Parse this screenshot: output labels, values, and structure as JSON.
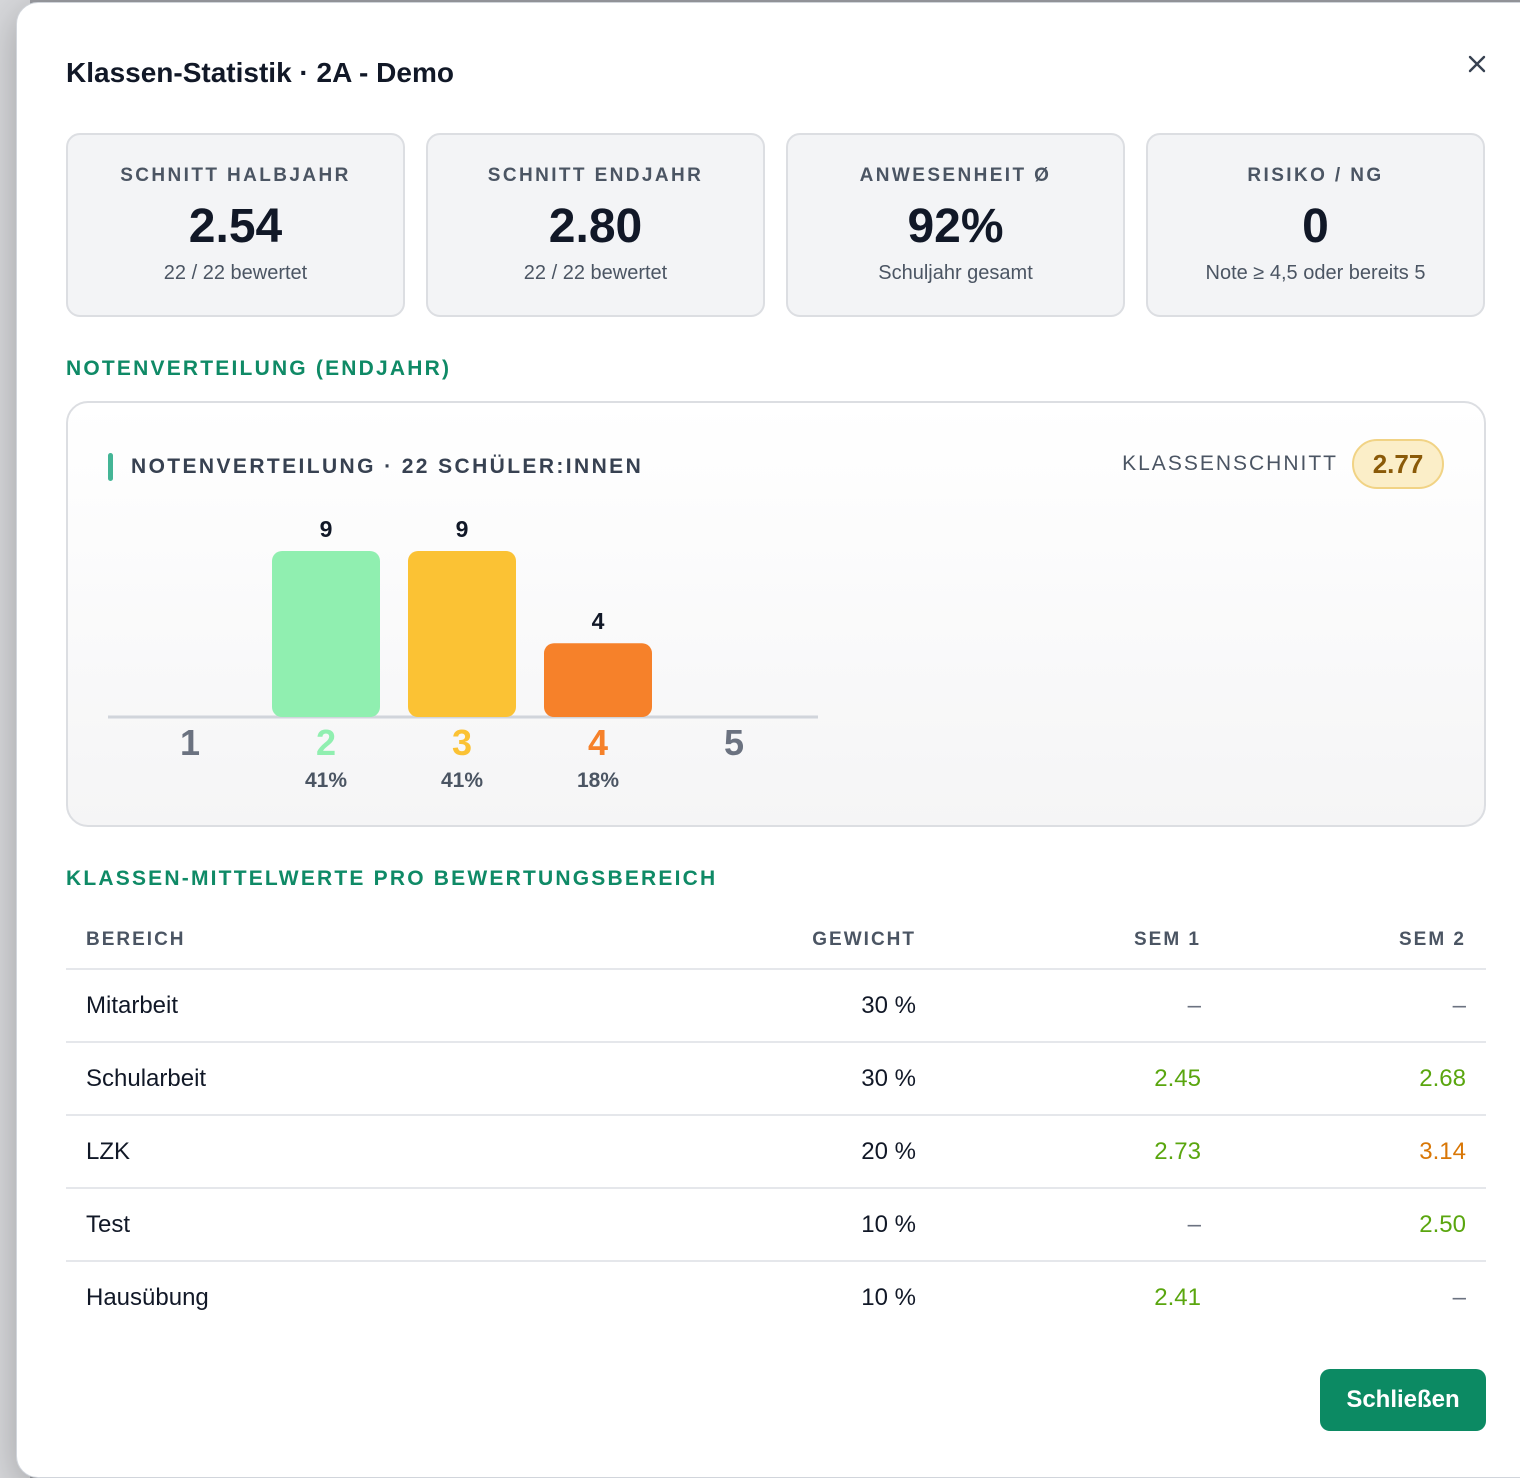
{
  "modal": {
    "title": "Klassen-Statistik · 2A - Demo",
    "close_icon": "close-icon"
  },
  "stats": [
    {
      "label": "SCHNITT HALBJAHR",
      "value": "2.54",
      "sub": "22 / 22 bewertet"
    },
    {
      "label": "SCHNITT ENDJAHR",
      "value": "2.80",
      "sub": "22 / 22 bewertet"
    },
    {
      "label": "ANWESENHEIT Ø",
      "value": "92%",
      "sub": "Schuljahr gesamt"
    },
    {
      "label": "RISIKO / NG",
      "value": "0",
      "sub": "Note ≥ 4,5 oder bereits 5"
    }
  ],
  "distribution_section": {
    "title": "NOTENVERTEILUNG (ENDJAHR)"
  },
  "chart_data": {
    "type": "bar",
    "title": "NOTENVERTEILUNG · 22 SCHÜLER:INNEN",
    "average_label": "KLASSENSCHNITT",
    "average_value": "2.77",
    "categories": [
      "1",
      "2",
      "3",
      "4",
      "5"
    ],
    "values": [
      0,
      9,
      9,
      4,
      0
    ],
    "value_labels": [
      "",
      "9",
      "9",
      "4",
      ""
    ],
    "percent_labels": [
      "",
      "41%",
      "41%",
      "18%",
      ""
    ],
    "colors": [
      "#6b7280",
      "#90efb0",
      "#fbc234",
      "#f6812a",
      "#6b7280"
    ],
    "label_colors": [
      "#6b7280",
      "#90efb0",
      "#fbc234",
      "#f6812a",
      "#6b7280"
    ],
    "ylim": [
      0,
      9
    ]
  },
  "table_section": {
    "title": "KLASSEN-MITTELWERTE PRO BEWERTUNGSBEREICH"
  },
  "table": {
    "headers": [
      "BEREICH",
      "GEWICHT",
      "SEM 1",
      "SEM 2"
    ],
    "rows": [
      {
        "bereich": "Mitarbeit",
        "gewicht": "30 %",
        "sem1": "–",
        "sem2": "–",
        "sem1_color": "#6b7280",
        "sem2_color": "#6b7280"
      },
      {
        "bereich": "Schularbeit",
        "gewicht": "30 %",
        "sem1": "2.45",
        "sem2": "2.68",
        "sem1_color": "#5aa60f",
        "sem2_color": "#5aa60f"
      },
      {
        "bereich": "LZK",
        "gewicht": "20 %",
        "sem1": "2.73",
        "sem2": "3.14",
        "sem1_color": "#5aa60f",
        "sem2_color": "#d97706"
      },
      {
        "bereich": "Test",
        "gewicht": "10 %",
        "sem1": "–",
        "sem2": "2.50",
        "sem1_color": "#6b7280",
        "sem2_color": "#5aa60f"
      },
      {
        "bereich": "Hausübung",
        "gewicht": "10 %",
        "sem1": "2.41",
        "sem2": "–",
        "sem1_color": "#5aa60f",
        "sem2_color": "#6b7280"
      }
    ]
  },
  "footer": {
    "close_label": "Schließen"
  },
  "colors": {
    "accent_green": "#0c8a63",
    "badge_bg": "#fbeec8",
    "badge_text": "#8a5a08"
  }
}
